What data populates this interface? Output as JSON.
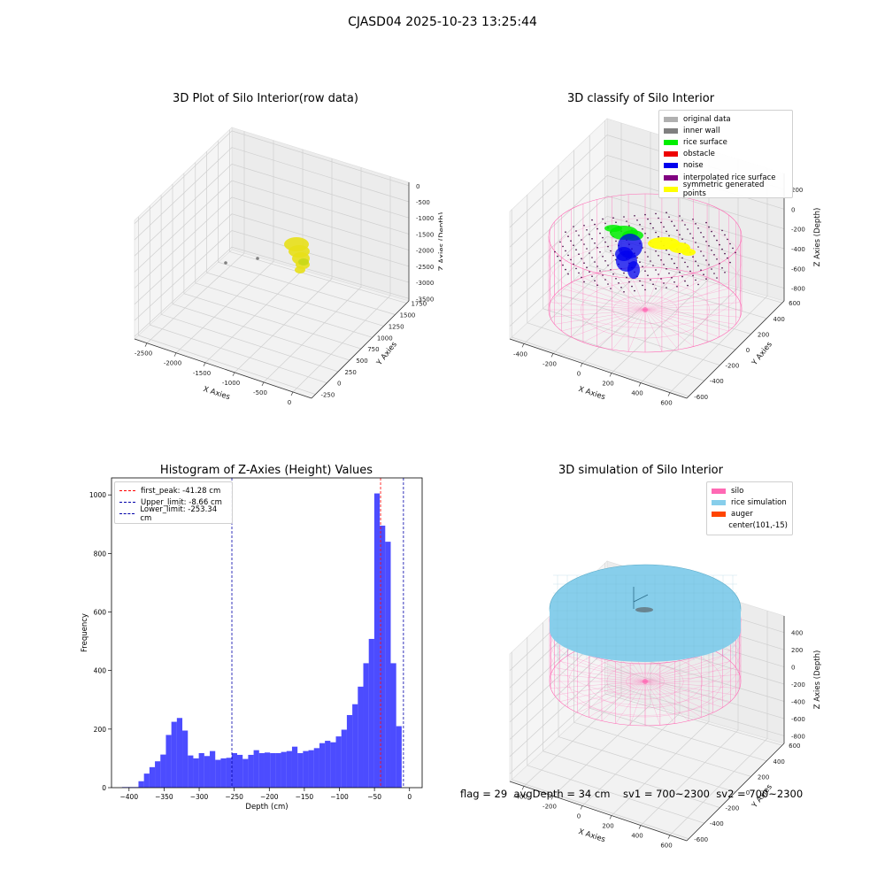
{
  "suptitle": "CJASD04 2025-10-23 13:25:44",
  "status_line": "flag = 29  avgDepth = 34 cm    sv1 = 700~2300  sv2 = 700~2300",
  "chart_data": [
    {
      "type": "scatter",
      "projection": "3d",
      "title": "3D Plot of Silo Interior(row data)",
      "xlabel": "X Axies",
      "ylabel": "Y Axies",
      "zlabel": "Z Axies (Depth)",
      "xticks": [
        "-2500",
        "-2000",
        "-1500",
        "-1000",
        "-500",
        "0"
      ],
      "yticks": [
        "-250",
        "0",
        "250",
        "500",
        "750",
        "1000",
        "1250",
        "1500",
        "1750"
      ],
      "zticks": [
        "-3500",
        "-3000",
        "-2500",
        "-2000",
        "-1500",
        "-1000",
        "-500",
        "0"
      ],
      "series": [
        {
          "color": "#e8e01a",
          "description": "point cloud cluster"
        },
        {
          "color": "#808080",
          "description": "outlier points"
        }
      ]
    },
    {
      "type": "scatter",
      "projection": "3d",
      "title": "3D classify of Silo Interior",
      "xlabel": "X Axies",
      "ylabel": "Y Axies",
      "zlabel": "Z Axies (Depth)",
      "xticks": [
        "-400",
        "-200",
        "0",
        "200",
        "400",
        "600"
      ],
      "yticks": [
        "-600",
        "-400",
        "-200",
        "0",
        "200",
        "400",
        "600"
      ],
      "zticks": [
        "-800",
        "-600",
        "-400",
        "-200",
        "0",
        "200"
      ],
      "legend_position": "top-right",
      "legend": [
        {
          "label": "original data",
          "color": "#b0b0b0"
        },
        {
          "label": "inner wall",
          "color": "#808080"
        },
        {
          "label": "rice surface",
          "color": "#00ee00"
        },
        {
          "label": "obstacle",
          "color": "#ee0000"
        },
        {
          "label": "noise",
          "color": "#0000ee"
        },
        {
          "label": "interpolated rice surface",
          "color": "#800080"
        },
        {
          "label": "symmetric generated points",
          "color": "#ffff00"
        }
      ]
    },
    {
      "type": "bar",
      "title": "Histogram of Z-Axies (Height) Values",
      "xlabel": "Depth (cm)",
      "ylabel": "Frequency",
      "xlim": [
        -425,
        18
      ],
      "ylim": [
        0,
        1058
      ],
      "xticks": [
        -400,
        -350,
        -300,
        -250,
        -200,
        -150,
        -100,
        -50,
        0
      ],
      "yticks": [
        0,
        200,
        400,
        600,
        800,
        1000
      ],
      "bar_color": "#0000ff",
      "bin_start": -410,
      "bin_width": 7.82,
      "values": [
        2,
        2,
        2,
        22,
        48,
        70,
        90,
        113,
        180,
        225,
        238,
        195,
        110,
        100,
        118,
        108,
        125,
        95,
        100,
        102,
        118,
        112,
        98,
        112,
        128,
        118,
        120,
        118,
        118,
        122,
        125,
        140,
        118,
        125,
        128,
        135,
        152,
        160,
        155,
        175,
        198,
        248,
        285,
        345,
        425,
        508,
        1005,
        895,
        840,
        425,
        210
      ],
      "vlines": [
        {
          "label": "first_peak: -41.28 cm",
          "x": -41.28,
          "color": "#ff0000"
        },
        {
          "label": "Upper_limit: -8.66 cm",
          "x": -8.66,
          "color": "#0000aa"
        },
        {
          "label": "Lower_limit: -253.34 cm",
          "x": -253.34,
          "color": "#0000aa"
        }
      ],
      "legend_position": "top-left"
    },
    {
      "type": "scatter",
      "projection": "3d",
      "title": "3D simulation of Silo Interior",
      "xlabel": "X Axies",
      "ylabel": "Y Axies",
      "zlabel": "Z Axies (Depth)",
      "xticks": [
        "-400",
        "-200",
        "0",
        "200",
        "400",
        "600"
      ],
      "yticks": [
        "-600",
        "-400",
        "-200",
        "0",
        "200",
        "400",
        "600"
      ],
      "zticks": [
        "-800",
        "-600",
        "-400",
        "-200",
        "0",
        "200",
        "400"
      ],
      "legend_position": "top-right",
      "legend": [
        {
          "label": "silo",
          "color": "#ff69b4"
        },
        {
          "label": "rice simulation",
          "color": "#87ceeb"
        },
        {
          "label": "auger",
          "color": "#ff4500"
        },
        {
          "label": "center(101,-15)",
          "color": ""
        }
      ]
    }
  ]
}
